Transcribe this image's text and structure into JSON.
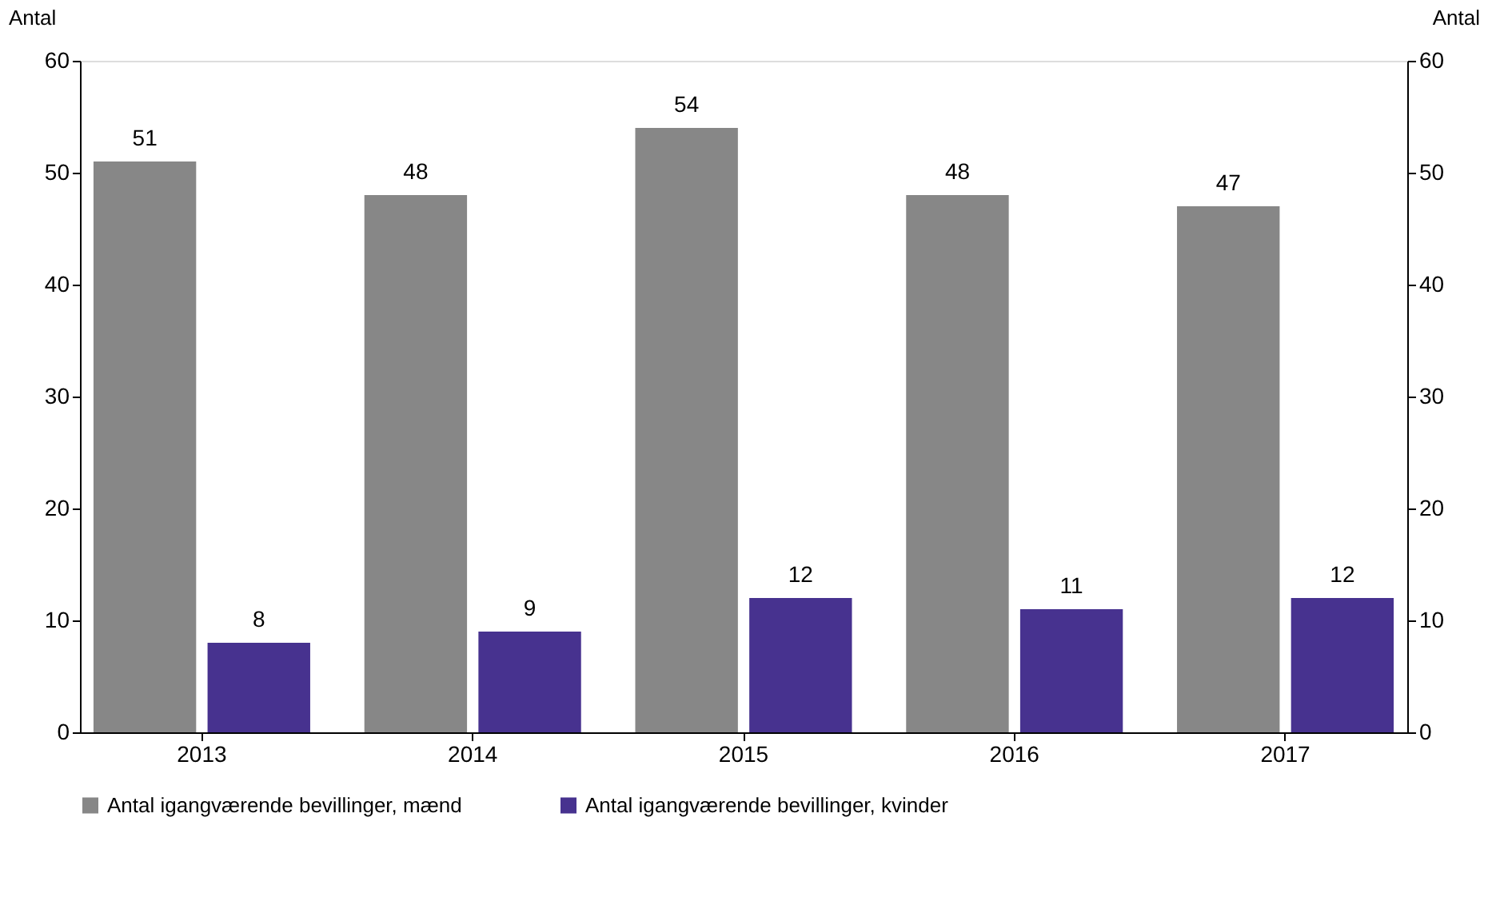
{
  "chart_data": {
    "type": "bar",
    "ylabel": "Antal",
    "y2label": "Antal",
    "categories": [
      "2013",
      "2014",
      "2015",
      "2016",
      "2017"
    ],
    "series": [
      {
        "name": "Antal igangværende bevillinger, mænd",
        "color": "#878787",
        "values": [
          51,
          48,
          54,
          48,
          47
        ]
      },
      {
        "name": "Antal igangværende bevillinger, kvinder",
        "color": "#47328f",
        "values": [
          8,
          9,
          12,
          11,
          12
        ]
      }
    ],
    "ylim": [
      0,
      60
    ],
    "yticks": [
      0,
      10,
      20,
      30,
      40,
      50,
      60
    ],
    "y2lim": [
      0,
      60
    ],
    "y2ticks": [
      0,
      10,
      20,
      30,
      40,
      50,
      60
    ],
    "data_labels": true,
    "legend": "bottom",
    "grid": false
  }
}
